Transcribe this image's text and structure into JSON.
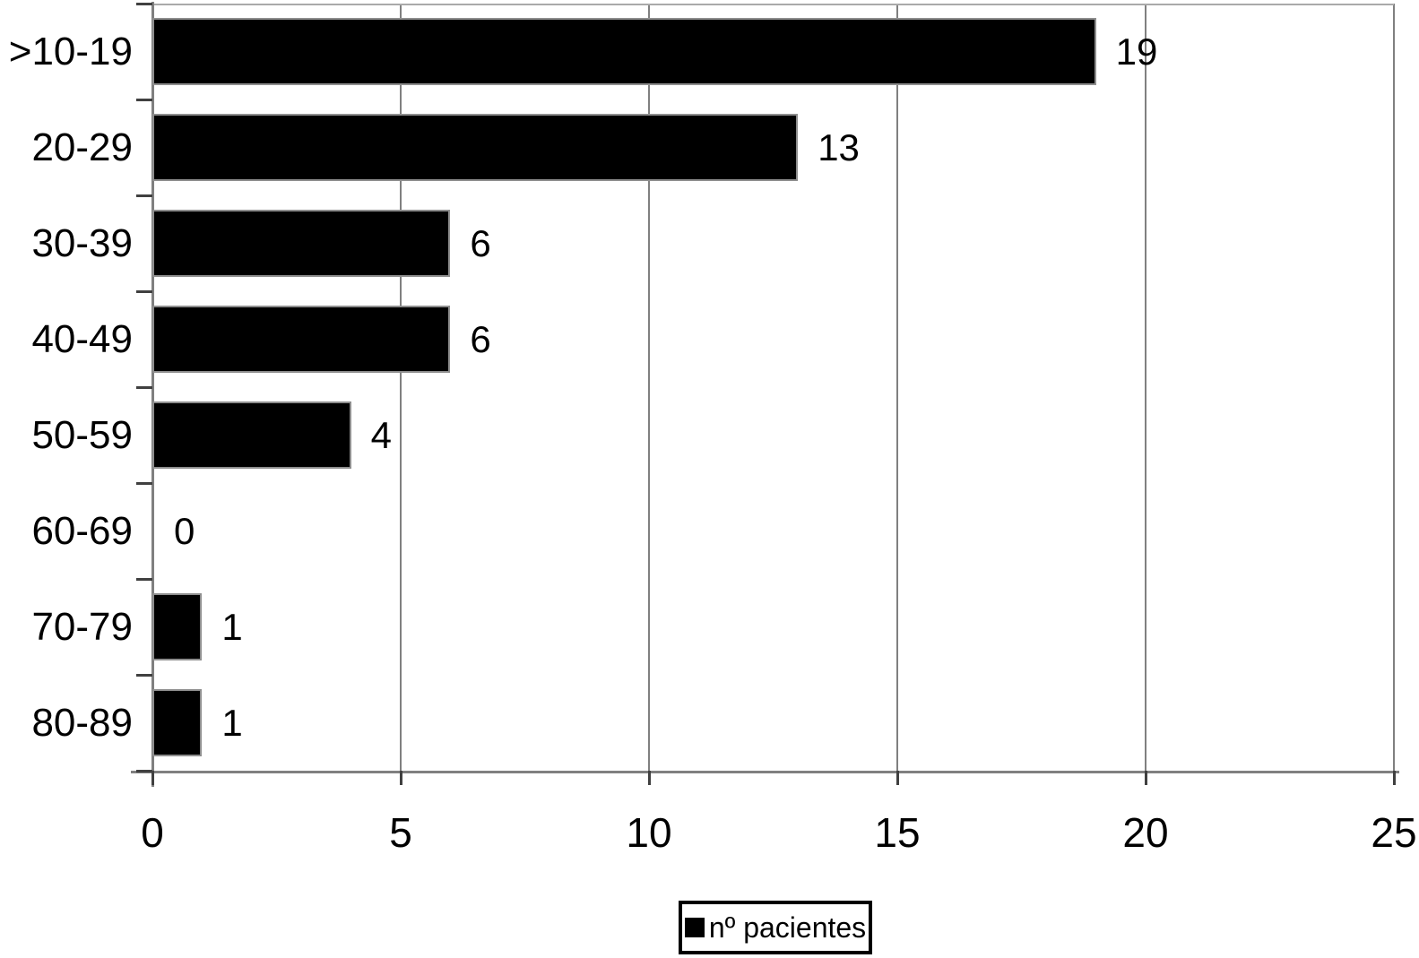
{
  "chart_data": {
    "type": "bar",
    "orientation": "horizontal",
    "title": "",
    "xlabel": "",
    "ylabel": "",
    "categories": [
      ">10-19",
      "20-29",
      "30-39",
      "40-49",
      "50-59",
      "60-69",
      "70-79",
      "80-89"
    ],
    "series": [
      {
        "name": "nº pacientes",
        "values": [
          19,
          13,
          6,
          6,
          4,
          0,
          1,
          1
        ]
      }
    ],
    "data_labels": [
      "19",
      "13",
      "6",
      "6",
      "4",
      "0",
      "1",
      "1"
    ],
    "xlim": [
      0,
      25
    ],
    "xticks": [
      0,
      5,
      10,
      15,
      20,
      25
    ],
    "grid": "vertical-gridlines-on",
    "legend_position": "bottom"
  },
  "legend": {
    "label": "nº pacientes"
  },
  "colors": {
    "bar_fill": "#000000",
    "bar_border": "#8e8e8e",
    "gridline": "#808080",
    "axis": "#808080",
    "tick": "#404040",
    "text": "#000000",
    "background": "#ffffff"
  }
}
